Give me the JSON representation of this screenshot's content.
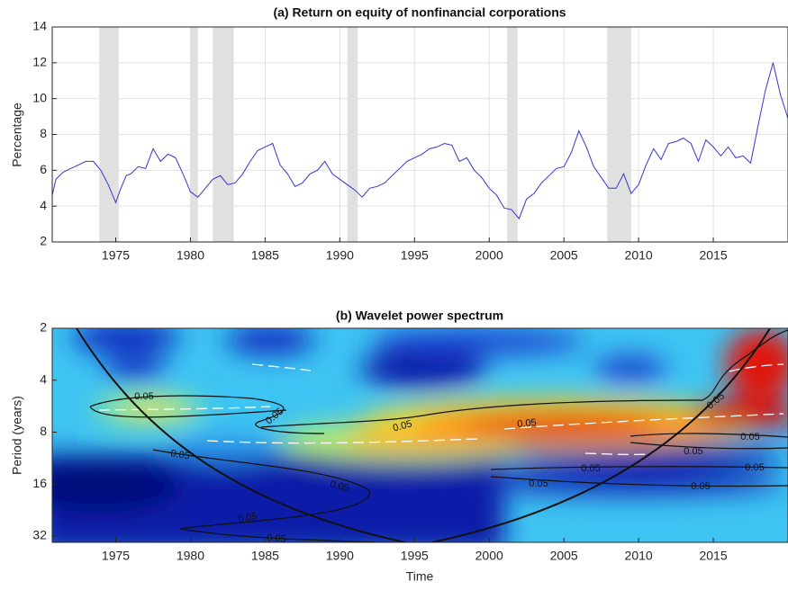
{
  "chart_data": [
    {
      "type": "line",
      "title": "(a) Return on equity of nonfinancial corporations",
      "y_label": "Percentage",
      "color": "#3535d0",
      "grid": true,
      "xlim": [
        1970.75,
        2020
      ],
      "xticks": [
        1975,
        1980,
        1985,
        1990,
        1995,
        2000,
        2005,
        2010,
        2015
      ],
      "ylim": [
        2,
        14
      ],
      "yticks": [
        2,
        4,
        6,
        8,
        10,
        12,
        14
      ],
      "shaded_periods": [
        [
          1973.9,
          1975.2
        ],
        [
          1980.0,
          1980.5
        ],
        [
          1981.5,
          1982.9
        ],
        [
          1990.5,
          1991.2
        ],
        [
          2001.2,
          2001.9
        ],
        [
          2007.9,
          2009.5
        ]
      ],
      "x": [
        1970.75,
        1971,
        1971.5,
        1972,
        1972.5,
        1973,
        1973.5,
        1974,
        1974.5,
        1975,
        1975.3,
        1975.7,
        1976,
        1976.5,
        1977,
        1977.5,
        1978,
        1978.5,
        1979,
        1979.5,
        1980,
        1980.5,
        1981,
        1981.5,
        1982,
        1982.5,
        1983,
        1983.5,
        1984,
        1984.5,
        1985,
        1985.5,
        1986,
        1986.5,
        1987,
        1987.5,
        1988,
        1988.5,
        1989,
        1989.5,
        1990,
        1990.5,
        1991,
        1991.5,
        1992,
        1992.5,
        1993,
        1993.5,
        1994,
        1994.5,
        1995,
        1995.5,
        1996,
        1996.5,
        1997,
        1997.5,
        1998,
        1998.5,
        1999,
        1999.5,
        2000,
        2000.5,
        2001,
        2001.5,
        2002,
        2002.5,
        2003,
        2003.5,
        2004,
        2004.5,
        2005,
        2005.5,
        2006,
        2006.5,
        2007,
        2007.5,
        2008,
        2008.5,
        2009,
        2009.5,
        2010,
        2010.5,
        2011,
        2011.5,
        2012,
        2012.5,
        2013,
        2013.5,
        2014,
        2014.5,
        2015,
        2015.5,
        2016,
        2016.5,
        2017,
        2017.5,
        2018,
        2018.5,
        2019,
        2019.5,
        2020
      ],
      "values": [
        4.6,
        5.5,
        5.9,
        6.1,
        6.3,
        6.5,
        6.5,
        6.0,
        5.2,
        4.2,
        4.9,
        5.7,
        5.8,
        6.2,
        6.1,
        7.2,
        6.5,
        6.9,
        6.7,
        5.8,
        4.8,
        4.5,
        5.0,
        5.5,
        5.7,
        5.2,
        5.3,
        5.8,
        6.5,
        7.1,
        7.3,
        7.5,
        6.3,
        5.8,
        5.1,
        5.3,
        5.8,
        6.0,
        6.5,
        5.8,
        5.5,
        5.2,
        4.9,
        4.5,
        5.0,
        5.1,
        5.3,
        5.7,
        6.1,
        6.5,
        6.7,
        6.9,
        7.2,
        7.3,
        7.5,
        7.4,
        6.5,
        6.7,
        6.0,
        5.6,
        5.0,
        4.6,
        3.9,
        3.8,
        3.3,
        4.4,
        4.7,
        5.3,
        5.7,
        6.1,
        6.2,
        7.0,
        8.2,
        7.3,
        6.2,
        5.6,
        5.0,
        5.0,
        5.8,
        4.7,
        5.2,
        6.3,
        7.2,
        6.6,
        7.5,
        7.6,
        7.8,
        7.5,
        6.5,
        7.7,
        7.3,
        6.8,
        7.3,
        6.7,
        6.8,
        6.4,
        8.5,
        10.5,
        12.0,
        10.2,
        8.9
      ]
    },
    {
      "type": "wavelet",
      "title": "(b) Wavelet power spectrum",
      "x_label": "Time",
      "y_label": "Period (years)",
      "xlim": [
        1970.75,
        2020
      ],
      "xticks": [
        1975,
        1980,
        1985,
        1990,
        1995,
        2000,
        2005,
        2010,
        2015
      ],
      "ylim": [
        2,
        34.8
      ],
      "yticks": [
        2,
        4,
        8,
        16,
        32
      ],
      "log_scale_y": true,
      "y_reversed": true,
      "contour_labels": [
        0.05,
        0.05,
        0.05,
        0.05,
        0.05,
        0.05,
        0.05,
        0.05,
        0.05,
        0.05,
        0.05,
        0.05,
        0.05,
        0.05,
        0.05
      ]
    }
  ]
}
